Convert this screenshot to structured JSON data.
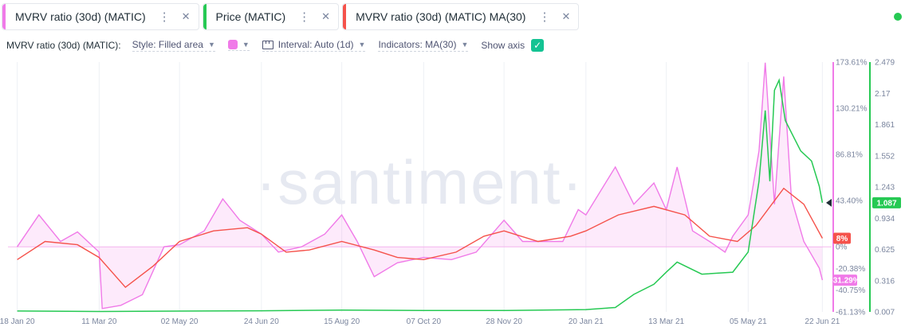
{
  "tabs": [
    {
      "label": "MVRV ratio (30d) (MATIC)",
      "color": "#f07ae8"
    },
    {
      "label": "Price (MATIC)",
      "color": "#26c953"
    },
    {
      "label": "MVRV ratio (30d) (MATIC) MA(30)",
      "color": "#f5524b"
    }
  ],
  "toolbar": {
    "metric": "MVRV ratio (30d) (MATIC):",
    "style": "Style: Filled area",
    "color": "#f07ae8",
    "interval": "Interval: Auto (1d)",
    "indicators": "Indicators: MA(30)",
    "show_axis": "Show axis",
    "show_axis_checked": true
  },
  "watermark": "·santiment·",
  "chart_data": {
    "type": "area",
    "x_ticks": [
      "18 Jan 20",
      "11 Mar 20",
      "02 May 20",
      "24 Jun 20",
      "15 Aug 20",
      "07 Oct 20",
      "28 Nov 20",
      "20 Jan 21",
      "13 Mar 21",
      "05 May 21",
      "22 Jun 21"
    ],
    "y_left_ticks": [
      "173.61%",
      "130.21%",
      "86.81%",
      "43.40%",
      "0%",
      "-20.38%",
      "-40.75%",
      "-61.13%"
    ],
    "y_right_ticks": [
      "2.479",
      "2.17",
      "1.861",
      "1.552",
      "1.243",
      "0.934",
      "0.625",
      "0.316",
      "0.007"
    ],
    "y_left_range": [
      -61.13,
      173.61
    ],
    "y_right_range": [
      0.007,
      2.479
    ],
    "current_values": {
      "mvrv": "-31.29%",
      "ma": "8%",
      "price": "1.087"
    },
    "series": [
      {
        "name": "MVRV ratio (30d) (MATIC)",
        "axis": "left",
        "color": "#f07ae8",
        "style": "filled-area",
        "points": [
          [
            "18 Jan 20",
            0
          ],
          [
            "01 Feb 20",
            30
          ],
          [
            "15 Feb 20",
            5
          ],
          [
            "26 Feb 20",
            14
          ],
          [
            "11 Mar 20",
            -5
          ],
          [
            "13 Mar 20",
            -58
          ],
          [
            "25 Mar 20",
            -55
          ],
          [
            "08 Apr 20",
            -45
          ],
          [
            "22 Apr 20",
            0
          ],
          [
            "02 May 20",
            2
          ],
          [
            "18 May 20",
            15
          ],
          [
            "30 May 20",
            45
          ],
          [
            "10 Jun 20",
            25
          ],
          [
            "24 Jun 20",
            12
          ],
          [
            "05 Jul 20",
            -5
          ],
          [
            "20 Jul 20",
            0
          ],
          [
            "04 Aug 20",
            12
          ],
          [
            "15 Aug 20",
            30
          ],
          [
            "25 Aug 20",
            5
          ],
          [
            "05 Sep 20",
            -28
          ],
          [
            "20 Sep 20",
            -15
          ],
          [
            "07 Oct 20",
            -10
          ],
          [
            "25 Oct 20",
            -12
          ],
          [
            "10 Nov 20",
            -5
          ],
          [
            "28 Nov 20",
            25
          ],
          [
            "10 Dec 20",
            5
          ],
          [
            "25 Dec 20",
            5
          ],
          [
            "05 Jan 21",
            5
          ],
          [
            "15 Jan 21",
            35
          ],
          [
            "20 Jan 21",
            30
          ],
          [
            "08 Feb 21",
            75
          ],
          [
            "20 Feb 21",
            40
          ],
          [
            "05 Mar 21",
            60
          ],
          [
            "13 Mar 21",
            35
          ],
          [
            "20 Mar 21",
            75
          ],
          [
            "30 Mar 21",
            15
          ],
          [
            "10 Apr 21",
            5
          ],
          [
            "20 Apr 21",
            -5
          ],
          [
            "25 Apr 21",
            10
          ],
          [
            "05 May 21",
            30
          ],
          [
            "12 May 21",
            90
          ],
          [
            "16 May 21",
            173
          ],
          [
            "22 May 21",
            40
          ],
          [
            "28 May 21",
            160
          ],
          [
            "02 Jun 21",
            45
          ],
          [
            "10 Jun 21",
            5
          ],
          [
            "20 Jun 21",
            -20
          ],
          [
            "22 Jun 21",
            -31.29
          ]
        ]
      },
      {
        "name": "Price (MATIC)",
        "axis": "right",
        "color": "#26c953",
        "style": "line",
        "points": [
          [
            "18 Jan 20",
            0.016
          ],
          [
            "11 Mar 20",
            0.011
          ],
          [
            "02 May 20",
            0.015
          ],
          [
            "24 Jun 20",
            0.018
          ],
          [
            "15 Aug 20",
            0.025
          ],
          [
            "07 Oct 20",
            0.02
          ],
          [
            "28 Nov 20",
            0.02
          ],
          [
            "20 Jan 21",
            0.03
          ],
          [
            "08 Feb 21",
            0.05
          ],
          [
            "20 Feb 21",
            0.18
          ],
          [
            "05 Mar 21",
            0.28
          ],
          [
            "13 Mar 21",
            0.4
          ],
          [
            "20 Mar 21",
            0.5
          ],
          [
            "05 Apr 21",
            0.38
          ],
          [
            "25 Apr 21",
            0.4
          ],
          [
            "05 May 21",
            0.6
          ],
          [
            "12 May 21",
            1.3
          ],
          [
            "16 May 21",
            2.0
          ],
          [
            "19 May 21",
            1.3
          ],
          [
            "22 May 21",
            2.2
          ],
          [
            "25 May 21",
            2.3
          ],
          [
            "29 May 21",
            1.9
          ],
          [
            "03 Jun 21",
            1.75
          ],
          [
            "08 Jun 21",
            1.6
          ],
          [
            "15 Jun 21",
            1.5
          ],
          [
            "20 Jun 21",
            1.25
          ],
          [
            "22 Jun 21",
            1.087
          ]
        ]
      },
      {
        "name": "MVRV ratio (30d) (MATIC) MA(30)",
        "axis": "left",
        "color": "#f5524b",
        "style": "line",
        "points": [
          [
            "18 Jan 20",
            -12
          ],
          [
            "05 Feb 20",
            5
          ],
          [
            "26 Feb 20",
            2
          ],
          [
            "11 Mar 20",
            -10
          ],
          [
            "28 Mar 20",
            -38
          ],
          [
            "15 Apr 20",
            -18
          ],
          [
            "02 May 20",
            5
          ],
          [
            "24 May 20",
            15
          ],
          [
            "15 Jun 20",
            18
          ],
          [
            "24 Jun 20",
            12
          ],
          [
            "10 Jul 20",
            -5
          ],
          [
            "25 Jul 20",
            -3
          ],
          [
            "15 Aug 20",
            5
          ],
          [
            "05 Sep 20",
            -3
          ],
          [
            "20 Sep 20",
            -10
          ],
          [
            "07 Oct 20",
            -12
          ],
          [
            "28 Oct 20",
            -5
          ],
          [
            "15 Nov 20",
            10
          ],
          [
            "28 Nov 20",
            15
          ],
          [
            "20 Dec 20",
            5
          ],
          [
            "10 Jan 21",
            10
          ],
          [
            "20 Jan 21",
            15
          ],
          [
            "10 Feb 21",
            30
          ],
          [
            "05 Mar 21",
            38
          ],
          [
            "25 Mar 21",
            30
          ],
          [
            "10 Apr 21",
            10
          ],
          [
            "28 Apr 21",
            5
          ],
          [
            "10 May 21",
            20
          ],
          [
            "28 May 21",
            55
          ],
          [
            "10 Jun 21",
            40
          ],
          [
            "22 Jun 21",
            8
          ]
        ]
      }
    ]
  }
}
